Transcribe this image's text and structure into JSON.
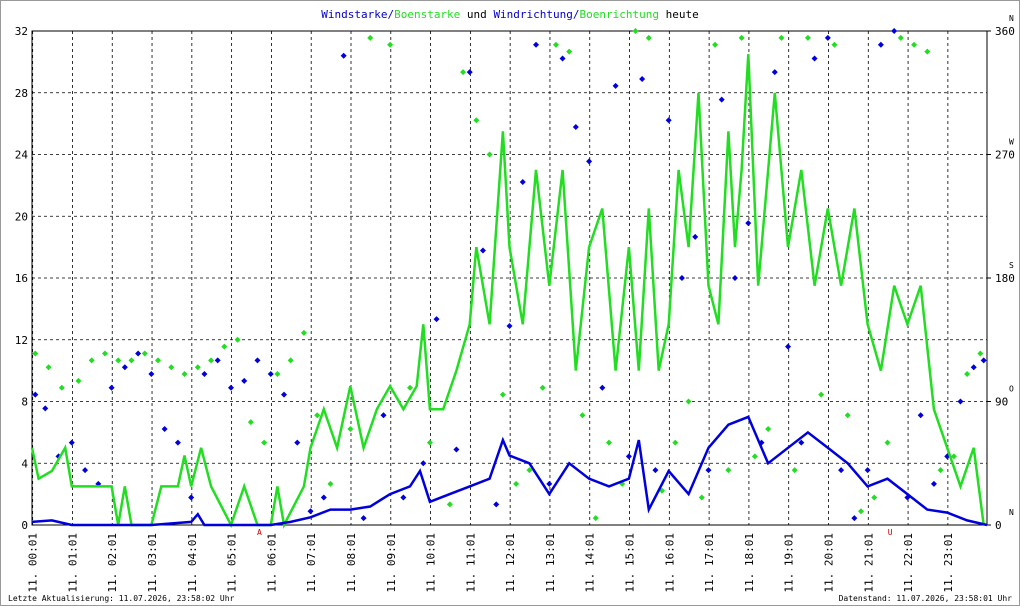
{
  "chart_data": {
    "type": "line",
    "title_parts": [
      {
        "text": "Windstarke/",
        "color": "#0000cc"
      },
      {
        "text": "Boenstarke",
        "color": "#22dd22"
      },
      {
        "text": " und ",
        "color": "#000000"
      },
      {
        "text": "Windrichtung/",
        "color": "#0000cc"
      },
      {
        "text": "Boenrichtung",
        "color": "#22dd22"
      },
      {
        "text": " heute",
        "color": "#000000"
      }
    ],
    "xlim": [
      0,
      1440
    ],
    "xticks": [
      {
        "value": 1,
        "label": "11. 00:01"
      },
      {
        "value": 61,
        "label": "11. 01:01"
      },
      {
        "value": 121,
        "label": "11. 02:01"
      },
      {
        "value": 181,
        "label": "11. 03:01"
      },
      {
        "value": 241,
        "label": "11. 04:01"
      },
      {
        "value": 301,
        "label": "11. 05:01"
      },
      {
        "value": 361,
        "label": "11. 06:01"
      },
      {
        "value": 421,
        "label": "11. 07:01"
      },
      {
        "value": 481,
        "label": "11. 08:01"
      },
      {
        "value": 541,
        "label": "11. 09:01"
      },
      {
        "value": 601,
        "label": "11. 10:01"
      },
      {
        "value": 661,
        "label": "11. 11:01"
      },
      {
        "value": 721,
        "label": "11. 12:01"
      },
      {
        "value": 781,
        "label": "11. 13:01"
      },
      {
        "value": 841,
        "label": "11. 14:01"
      },
      {
        "value": 901,
        "label": "11. 15:01"
      },
      {
        "value": 961,
        "label": "11. 16:01"
      },
      {
        "value": 1021,
        "label": "11. 17:01"
      },
      {
        "value": 1081,
        "label": "11. 18:01"
      },
      {
        "value": 1141,
        "label": "11. 19:01"
      },
      {
        "value": 1201,
        "label": "11. 20:01"
      },
      {
        "value": 1261,
        "label": "11. 21:01"
      },
      {
        "value": 1321,
        "label": "11. 22:01"
      },
      {
        "value": 1381,
        "label": "11. 23:01"
      }
    ],
    "ylim": [
      0,
      32
    ],
    "yticks": [
      0,
      4,
      8,
      12,
      16,
      20,
      24,
      28,
      32
    ],
    "y2lim": [
      0,
      360
    ],
    "y2ticks": [
      0,
      90,
      180,
      270,
      360
    ],
    "y2tick_letters": [
      "N",
      "O",
      "S",
      "W",
      "N"
    ],
    "grid": true,
    "series": [
      {
        "name": "Boenstarke",
        "kind": "line",
        "color": "#22dd22",
        "x": [
          0,
          10,
          30,
          50,
          60,
          120,
          130,
          140,
          150,
          180,
          195,
          220,
          230,
          240,
          255,
          270,
          300,
          320,
          340,
          360,
          370,
          380,
          410,
          420,
          440,
          460,
          480,
          500,
          520,
          540,
          560,
          580,
          590,
          600,
          620,
          640,
          660,
          670,
          690,
          710,
          720,
          740,
          760,
          780,
          800,
          820,
          840,
          860,
          880,
          900,
          915,
          930,
          945,
          960,
          975,
          990,
          1005,
          1020,
          1035,
          1050,
          1060,
          1070,
          1080,
          1095,
          1120,
          1140,
          1160,
          1180,
          1200,
          1220,
          1240,
          1260,
          1280,
          1300,
          1320,
          1340,
          1360,
          1380,
          1400,
          1420,
          1435
        ],
        "values": [
          5,
          3,
          3.5,
          5,
          2.5,
          2.5,
          0,
          2.5,
          0,
          0,
          2.5,
          2.5,
          4.5,
          2.5,
          5,
          2.5,
          0,
          2.5,
          0,
          0,
          2.5,
          0,
          2.5,
          5,
          7.5,
          5,
          9,
          5,
          7.5,
          9,
          7.5,
          9,
          13,
          7.5,
          7.5,
          10,
          13,
          18,
          13,
          25.5,
          18,
          13,
          23,
          15.5,
          23,
          10,
          18,
          20.5,
          10,
          18,
          10,
          20.5,
          10,
          13,
          23,
          18,
          28,
          15.5,
          13,
          25.5,
          18,
          23,
          30.5,
          15.5,
          28,
          18,
          23,
          15.5,
          20.5,
          15.5,
          20.5,
          13,
          10,
          15.5,
          13,
          15.5,
          7.5,
          5,
          2.5,
          5,
          0
        ]
      },
      {
        "name": "Windstarke",
        "kind": "line",
        "color": "#0000dd",
        "x": [
          0,
          30,
          60,
          120,
          180,
          240,
          250,
          260,
          300,
          360,
          390,
          420,
          450,
          480,
          510,
          540,
          570,
          585,
          600,
          630,
          660,
          690,
          710,
          720,
          750,
          780,
          810,
          840,
          870,
          900,
          915,
          930,
          960,
          990,
          1020,
          1050,
          1080,
          1110,
          1140,
          1170,
          1200,
          1230,
          1260,
          1290,
          1320,
          1350,
          1380,
          1410,
          1440
        ],
        "values": [
          0.2,
          0.3,
          0,
          0,
          0,
          0.2,
          0.7,
          0,
          0,
          0,
          0.2,
          0.5,
          1,
          1,
          1.2,
          2,
          2.5,
          3.5,
          1.5,
          2,
          2.5,
          3,
          5.5,
          4.5,
          4,
          2,
          4,
          3,
          2.5,
          3,
          5.5,
          1,
          3.5,
          2,
          5,
          6.5,
          7,
          4,
          5,
          6,
          5,
          4,
          2.5,
          3,
          2,
          1,
          0.8,
          0.3,
          0
        ]
      },
      {
        "name": "Boenrichtung",
        "kind": "scatter",
        "axis": "y2",
        "color": "#22dd22",
        "x": [
          5,
          25,
          45,
          70,
          90,
          110,
          130,
          150,
          170,
          190,
          210,
          230,
          250,
          270,
          290,
          310,
          330,
          350,
          370,
          390,
          410,
          430,
          450,
          480,
          510,
          540,
          570,
          600,
          630,
          650,
          670,
          690,
          710,
          730,
          750,
          770,
          790,
          810,
          830,
          850,
          870,
          890,
          910,
          930,
          950,
          970,
          990,
          1010,
          1030,
          1050,
          1070,
          1090,
          1110,
          1130,
          1150,
          1170,
          1190,
          1210,
          1230,
          1250,
          1270,
          1290,
          1310,
          1330,
          1350,
          1370,
          1390,
          1410,
          1430
        ],
        "values": [
          125,
          115,
          100,
          105,
          120,
          125,
          120,
          120,
          125,
          120,
          115,
          110,
          115,
          120,
          130,
          135,
          75,
          60,
          110,
          120,
          140,
          80,
          30,
          70,
          355,
          350,
          100,
          60,
          15,
          330,
          295,
          270,
          95,
          30,
          40,
          100,
          350,
          345,
          80,
          5,
          60,
          30,
          360,
          355,
          25,
          60,
          90,
          20,
          350,
          40,
          355,
          50,
          70,
          355,
          40,
          355,
          95,
          350,
          80,
          10,
          20,
          60,
          355,
          350,
          345,
          40,
          50,
          110,
          125
        ]
      },
      {
        "name": "Windrichtung",
        "kind": "scatter",
        "axis": "y2",
        "color": "#0000dd",
        "x": [
          5,
          20,
          40,
          60,
          80,
          100,
          120,
          140,
          160,
          180,
          200,
          220,
          240,
          260,
          280,
          300,
          320,
          340,
          360,
          380,
          400,
          420,
          440,
          470,
          500,
          530,
          560,
          590,
          610,
          640,
          660,
          680,
          700,
          720,
          740,
          760,
          780,
          800,
          820,
          840,
          860,
          880,
          900,
          920,
          940,
          960,
          980,
          1000,
          1020,
          1040,
          1060,
          1080,
          1100,
          1120,
          1140,
          1160,
          1180,
          1200,
          1220,
          1240,
          1260,
          1280,
          1300,
          1320,
          1340,
          1360,
          1380,
          1400,
          1420,
          1435
        ],
        "values": [
          95,
          85,
          50,
          60,
          40,
          30,
          100,
          115,
          125,
          110,
          70,
          60,
          20,
          110,
          120,
          100,
          105,
          120,
          110,
          95,
          60,
          10,
          20,
          342,
          5,
          80,
          20,
          45,
          150,
          55,
          330,
          200,
          15,
          145,
          250,
          350,
          30,
          340,
          290,
          265,
          100,
          320,
          50,
          325,
          40,
          295,
          180,
          210,
          40,
          310,
          180,
          220,
          60,
          330,
          130,
          60,
          340,
          355,
          40,
          5,
          40,
          350,
          360,
          20,
          80,
          30,
          50,
          90,
          115,
          120
        ]
      }
    ],
    "annotations": [
      {
        "x": 343,
        "label": "A"
      },
      {
        "x": 1294,
        "label": "U"
      }
    ],
    "footer_left": "Letzte Aktualisierung: 11.07.2026, 23:58:02 Uhr",
    "footer_right": "Datenstand: 11.07.2026, 23:58:01 Uhr"
  }
}
